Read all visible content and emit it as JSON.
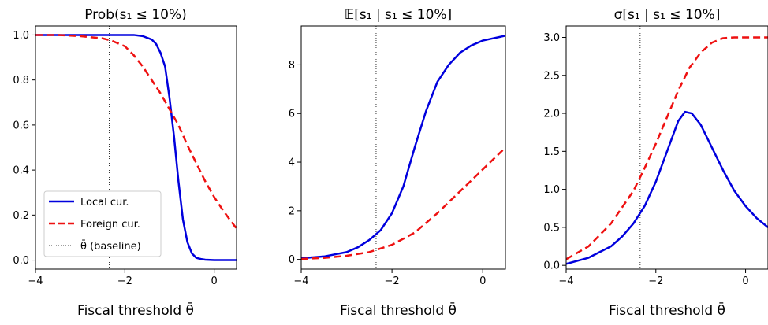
{
  "chart_data": [
    {
      "type": "line",
      "title": "Prob(s₁ ≤ 10%)",
      "xlabel": "Fiscal threshold θ̄",
      "xlim": [
        -4,
        0.5
      ],
      "ylim": [
        -0.04,
        1.04
      ],
      "xticks": [
        {
          "v": -4,
          "label": "−4"
        },
        {
          "v": -2,
          "label": "−2"
        },
        {
          "v": 0,
          "label": "0"
        }
      ],
      "yticks": [
        {
          "v": 0,
          "label": "0.0"
        },
        {
          "v": 0.2,
          "label": "0.2"
        },
        {
          "v": 0.4,
          "label": "0.4"
        },
        {
          "v": 0.6,
          "label": "0.6"
        },
        {
          "v": 0.8,
          "label": "0.8"
        },
        {
          "v": 1.0,
          "label": "1.0"
        }
      ],
      "baseline_x": -2.35,
      "legend": {
        "placement": "lower-left",
        "entries": [
          "Local cur.",
          "Foreign cur.",
          "θ̄ (baseline)"
        ]
      },
      "series": [
        {
          "name": "Local cur.",
          "color": "#0000dd",
          "style": "solid",
          "x": [
            -4,
            -3.5,
            -3,
            -2.5,
            -2,
            -1.8,
            -1.6,
            -1.4,
            -1.3,
            -1.2,
            -1.1,
            -1.0,
            -0.9,
            -0.8,
            -0.7,
            -0.6,
            -0.5,
            -0.4,
            -0.3,
            -0.2,
            0,
            0.2,
            0.5
          ],
          "y": [
            1.0,
            1.0,
            1.0,
            1.0,
            1.0,
            1.0,
            0.995,
            0.98,
            0.96,
            0.92,
            0.86,
            0.72,
            0.55,
            0.35,
            0.18,
            0.08,
            0.03,
            0.01,
            0.005,
            0.002,
            0.0,
            0.0,
            0.0
          ]
        },
        {
          "name": "Foreign cur.",
          "color": "#ee1111",
          "style": "dashed",
          "x": [
            -4,
            -3.5,
            -3,
            -2.5,
            -2.3,
            -2.0,
            -1.8,
            -1.6,
            -1.4,
            -1.2,
            -1.0,
            -0.8,
            -0.6,
            -0.4,
            -0.2,
            0,
            0.2,
            0.5
          ],
          "y": [
            1.0,
            1.0,
            0.995,
            0.985,
            0.975,
            0.95,
            0.91,
            0.86,
            0.8,
            0.74,
            0.67,
            0.6,
            0.51,
            0.43,
            0.35,
            0.28,
            0.22,
            0.14
          ]
        }
      ]
    },
    {
      "type": "line",
      "title": "𝔼[s₁ | s₁ ≤ 10%]",
      "xlabel": "Fiscal threshold θ̄",
      "xlim": [
        -4,
        0.5
      ],
      "ylim": [
        -0.4,
        9.6
      ],
      "xticks": [
        {
          "v": -4,
          "label": "−4"
        },
        {
          "v": -2,
          "label": "−2"
        },
        {
          "v": 0,
          "label": "0"
        }
      ],
      "yticks": [
        {
          "v": 0,
          "label": "0"
        },
        {
          "v": 2,
          "label": "2"
        },
        {
          "v": 4,
          "label": "4"
        },
        {
          "v": 6,
          "label": "6"
        },
        {
          "v": 8,
          "label": "8"
        }
      ],
      "baseline_x": -2.35,
      "series": [
        {
          "name": "Local cur.",
          "color": "#0000dd",
          "style": "solid",
          "x": [
            -4,
            -3.5,
            -3,
            -2.75,
            -2.5,
            -2.25,
            -2.0,
            -1.75,
            -1.5,
            -1.25,
            -1.0,
            -0.75,
            -0.5,
            -0.25,
            0,
            0.25,
            0.5
          ],
          "y": [
            0.05,
            0.12,
            0.3,
            0.5,
            0.8,
            1.2,
            1.9,
            3.0,
            4.6,
            6.1,
            7.3,
            8.0,
            8.5,
            8.8,
            9.0,
            9.1,
            9.2
          ]
        },
        {
          "name": "Foreign cur.",
          "color": "#ee1111",
          "style": "dashed",
          "x": [
            -4,
            -3.5,
            -3,
            -2.5,
            -2.0,
            -1.5,
            -1.0,
            -0.5,
            0,
            0.5
          ],
          "y": [
            0.02,
            0.06,
            0.15,
            0.3,
            0.6,
            1.1,
            1.9,
            2.8,
            3.7,
            4.6
          ]
        }
      ]
    },
    {
      "type": "line",
      "title": "σ[s₁ | s₁ ≤ 10%]",
      "xlabel": "Fiscal threshold θ̄",
      "xlim": [
        -4,
        0.5
      ],
      "ylim": [
        -0.05,
        3.15
      ],
      "xticks": [
        {
          "v": -4,
          "label": "−4"
        },
        {
          "v": -2,
          "label": "−2"
        },
        {
          "v": 0,
          "label": "0"
        }
      ],
      "yticks": [
        {
          "v": 0,
          "label": "0.0"
        },
        {
          "v": 0.5,
          "label": "0.5"
        },
        {
          "v": 1.0,
          "label": "1.0"
        },
        {
          "v": 1.5,
          "label": "1.5"
        },
        {
          "v": 2.0,
          "label": "2.0"
        },
        {
          "v": 2.5,
          "label": "2.5"
        },
        {
          "v": 3.0,
          "label": "3.0"
        }
      ],
      "baseline_x": -2.35,
      "series": [
        {
          "name": "Local cur.",
          "color": "#0000dd",
          "style": "solid",
          "x": [
            -4,
            -3.5,
            -3,
            -2.75,
            -2.5,
            -2.25,
            -2.0,
            -1.75,
            -1.5,
            -1.35,
            -1.2,
            -1.0,
            -0.75,
            -0.5,
            -0.25,
            0,
            0.25,
            0.5
          ],
          "y": [
            0.02,
            0.1,
            0.25,
            0.38,
            0.55,
            0.78,
            1.1,
            1.5,
            1.9,
            2.02,
            2.0,
            1.85,
            1.55,
            1.25,
            0.98,
            0.78,
            0.62,
            0.5
          ]
        },
        {
          "name": "Foreign cur.",
          "color": "#ee1111",
          "style": "dashed",
          "x": [
            -4,
            -3.5,
            -3,
            -2.5,
            -2.25,
            -2.0,
            -1.75,
            -1.5,
            -1.25,
            -1.0,
            -0.75,
            -0.5,
            -0.25,
            0,
            0.25,
            0.5
          ],
          "y": [
            0.08,
            0.25,
            0.55,
            0.98,
            1.28,
            1.6,
            1.95,
            2.3,
            2.6,
            2.8,
            2.93,
            2.99,
            3.0,
            3.0,
            3.0,
            3.0
          ]
        }
      ]
    }
  ]
}
